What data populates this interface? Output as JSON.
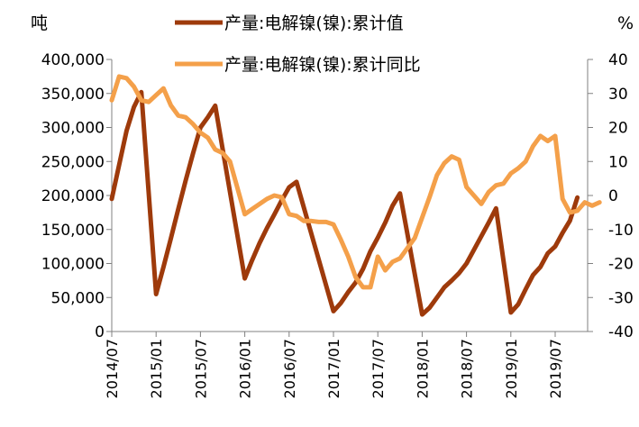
{
  "chart_data": {
    "type": "line",
    "title": "",
    "left_axis": {
      "unit": "吨",
      "ylim": [
        0,
        400000
      ],
      "ticks": [
        "0",
        "50,000",
        "100,000",
        "150,000",
        "200,000",
        "250,000",
        "300,000",
        "350,000",
        "400,000"
      ]
    },
    "right_axis": {
      "unit": "%",
      "ylim": [
        -40,
        40
      ],
      "ticks": [
        "-40",
        "-30",
        "-20",
        "-10",
        "0",
        "10",
        "20",
        "30",
        "40"
      ]
    },
    "x_tick_labels": [
      "2014/07",
      "2015/01",
      "2015/07",
      "2016/01",
      "2016/07",
      "2017/01",
      "2017/07",
      "2018/01",
      "2018/07",
      "2019/01",
      "2019/07"
    ],
    "grid": false,
    "legend_position": "top",
    "series": [
      {
        "name": "产量:电解镍(镍):累计值",
        "axis": "left",
        "color": "#9e3a0b",
        "points": [
          [
            "2014/07",
            195000
          ],
          [
            "2014/08",
            245000
          ],
          [
            "2014/09",
            295000
          ],
          [
            "2014/10",
            330000
          ],
          [
            "2014/11",
            352000
          ],
          [
            "2015/01",
            55000
          ],
          [
            "2015/02",
            95000
          ],
          [
            "2015/03",
            137000
          ],
          [
            "2015/04",
            180000
          ],
          [
            "2015/05",
            222000
          ],
          [
            "2015/06",
            262000
          ],
          [
            "2015/07",
            300000
          ],
          [
            "2015/08",
            315000
          ],
          [
            "2015/09",
            332000
          ],
          [
            "2016/01",
            78000
          ],
          [
            "2016/02",
            105000
          ],
          [
            "2016/03",
            130000
          ],
          [
            "2016/04",
            152000
          ],
          [
            "2016/05",
            172000
          ],
          [
            "2016/06",
            193000
          ],
          [
            "2016/07",
            212000
          ],
          [
            "2016/08",
            220000
          ],
          [
            "2017/01",
            30000
          ],
          [
            "2017/02",
            42000
          ],
          [
            "2017/03",
            58000
          ],
          [
            "2017/04",
            72000
          ],
          [
            "2017/05",
            92000
          ],
          [
            "2017/06",
            118000
          ],
          [
            "2017/07",
            138000
          ],
          [
            "2017/08",
            160000
          ],
          [
            "2017/09",
            185000
          ],
          [
            "2017/10",
            203000
          ],
          [
            "2018/01",
            25000
          ],
          [
            "2018/02",
            35000
          ],
          [
            "2018/03",
            50000
          ],
          [
            "2018/04",
            65000
          ],
          [
            "2018/05",
            75000
          ],
          [
            "2018/06",
            86000
          ],
          [
            "2018/07",
            100000
          ],
          [
            "2018/08",
            120000
          ],
          [
            "2018/09",
            140000
          ],
          [
            "2018/10",
            160000
          ],
          [
            "2018/11",
            181000
          ],
          [
            "2019/01",
            28000
          ],
          [
            "2019/02",
            40000
          ],
          [
            "2019/03",
            62000
          ],
          [
            "2019/04",
            83000
          ],
          [
            "2019/05",
            95000
          ],
          [
            "2019/06",
            115000
          ],
          [
            "2019/07",
            125000
          ],
          [
            "2019/08",
            145000
          ],
          [
            "2019/09",
            163000
          ],
          [
            "2019/10",
            197000
          ]
        ]
      },
      {
        "name": "产量:电解镍(镍):累计同比",
        "axis": "right",
        "color": "#f4a04a",
        "points": [
          [
            "2014/07",
            28
          ],
          [
            "2014/08",
            35
          ],
          [
            "2014/09",
            34.5
          ],
          [
            "2014/10",
            32
          ],
          [
            "2014/11",
            28
          ],
          [
            "2014/12",
            27.5
          ],
          [
            "2015/01",
            29.5
          ],
          [
            "2015/02",
            31.5
          ],
          [
            "2015/03",
            26.5
          ],
          [
            "2015/04",
            23.5
          ],
          [
            "2015/05",
            23
          ],
          [
            "2015/06",
            21
          ],
          [
            "2015/07",
            18.5
          ],
          [
            "2015/08",
            17
          ],
          [
            "2015/09",
            13.5
          ],
          [
            "2015/10",
            12.5
          ],
          [
            "2015/11",
            10
          ],
          [
            "2016/01",
            -5.5
          ],
          [
            "2016/02",
            -4
          ],
          [
            "2016/03",
            -2.5
          ],
          [
            "2016/04",
            -1
          ],
          [
            "2016/05",
            0
          ],
          [
            "2016/06",
            -0.5
          ],
          [
            "2016/07",
            -5.5
          ],
          [
            "2016/08",
            -6
          ],
          [
            "2016/09",
            -7.5
          ],
          [
            "2016/10",
            -7.5
          ],
          [
            "2016/11",
            -7.8
          ],
          [
            "2016/12",
            -7.8
          ],
          [
            "2017/01",
            -8.5
          ],
          [
            "2017/02",
            -13
          ],
          [
            "2017/03",
            -18
          ],
          [
            "2017/04",
            -24
          ],
          [
            "2017/05",
            -27
          ],
          [
            "2017/06",
            -27
          ],
          [
            "2017/07",
            -18
          ],
          [
            "2017/08",
            -22
          ],
          [
            "2017/09",
            -19.5
          ],
          [
            "2017/10",
            -18.5
          ],
          [
            "2017/11",
            -15.5
          ],
          [
            "2017/12",
            -12.5
          ],
          [
            "2018/01",
            -6.5
          ],
          [
            "2018/02",
            -0.5
          ],
          [
            "2018/03",
            6
          ],
          [
            "2018/04",
            9.5
          ],
          [
            "2018/05",
            11.5
          ],
          [
            "2018/06",
            10.5
          ],
          [
            "2018/07",
            2.5
          ],
          [
            "2018/08",
            0
          ],
          [
            "2018/09",
            -2.5
          ],
          [
            "2018/10",
            1
          ],
          [
            "2018/11",
            3
          ],
          [
            "2018/12",
            3.5
          ],
          [
            "2019/01",
            6.5
          ],
          [
            "2019/02",
            8
          ],
          [
            "2019/03",
            10
          ],
          [
            "2019/04",
            14.5
          ],
          [
            "2019/05",
            17.5
          ],
          [
            "2019/06",
            16
          ],
          [
            "2019/07",
            17.5
          ],
          [
            "2019/08",
            -1
          ],
          [
            "2019/09",
            -5
          ],
          [
            "2019/10",
            -4.5
          ],
          [
            "2019/11",
            -2
          ],
          [
            "2019/12",
            -3
          ],
          [
            "2020/01",
            -2
          ]
        ]
      }
    ]
  }
}
